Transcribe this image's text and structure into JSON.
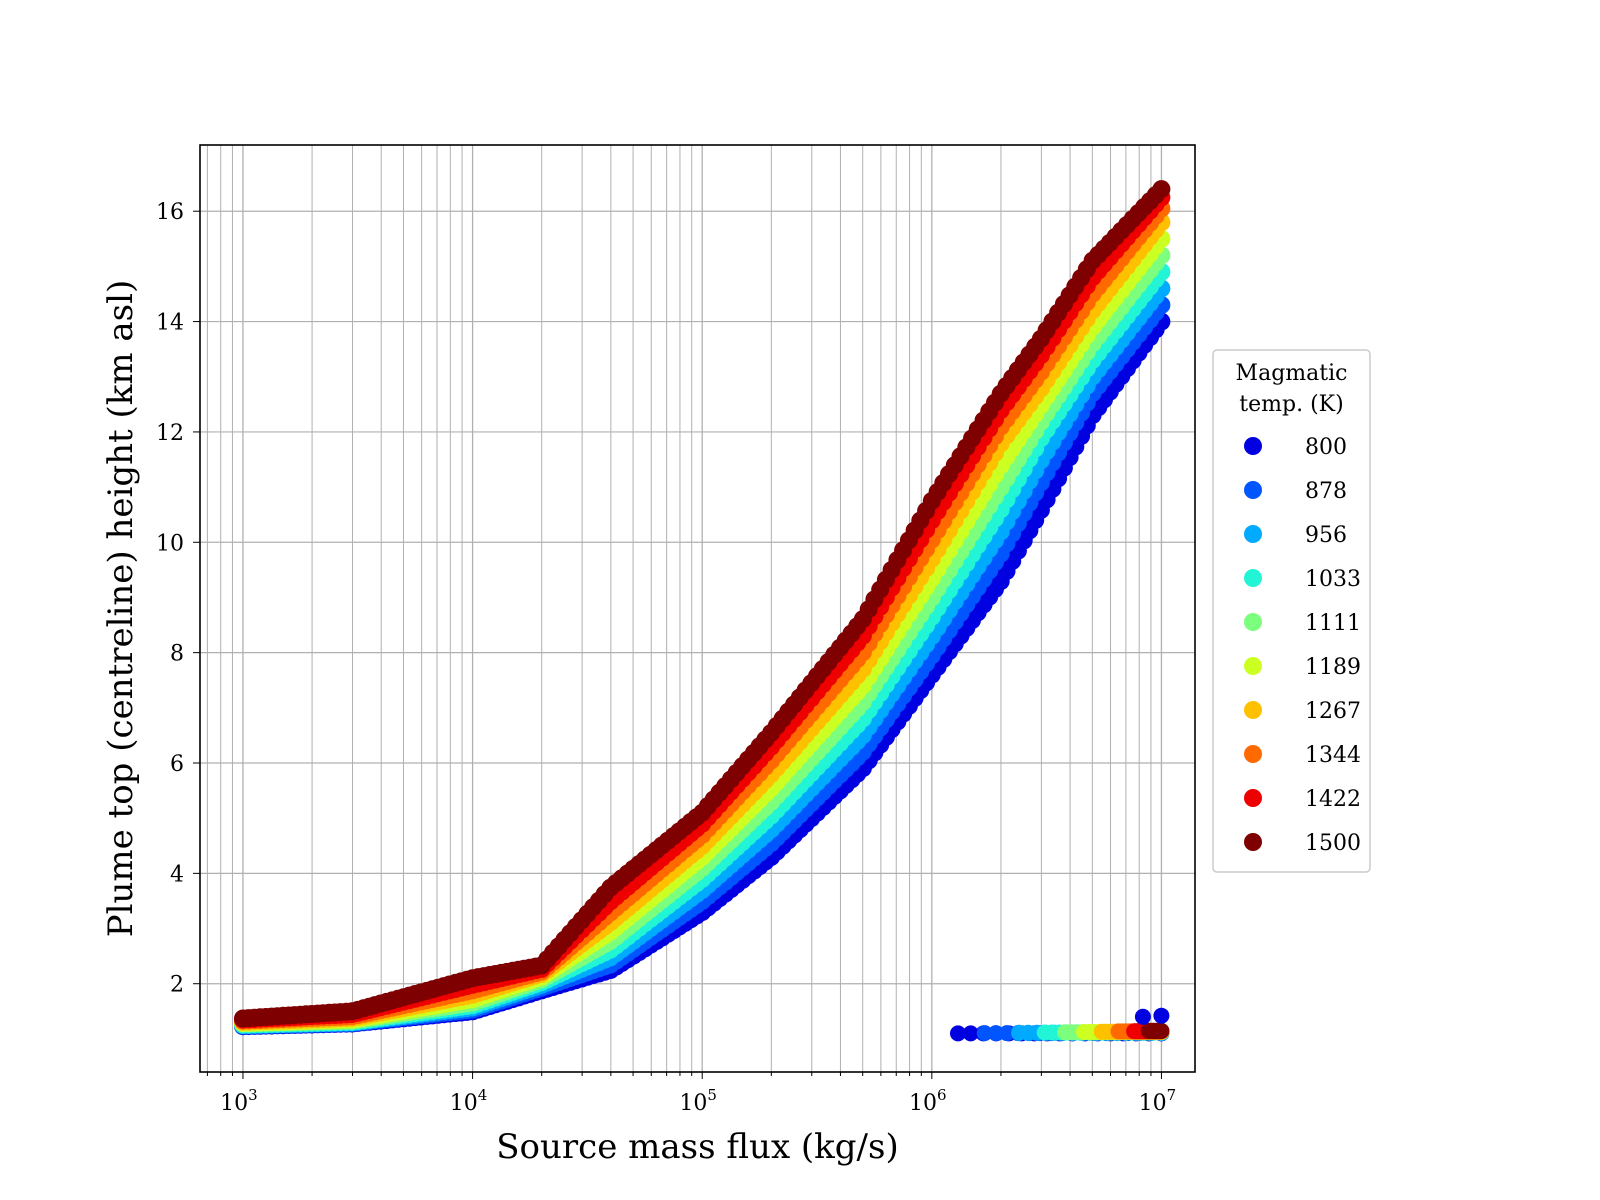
{
  "chart_data": {
    "type": "scatter",
    "title": "",
    "xlabel": "Source mass flux (kg/s)",
    "ylabel": "Plume top (centreline) height (km asl)",
    "xscale": "log",
    "xlim": [
      650,
      14000000
    ],
    "ylim": [
      0.4,
      17.2
    ],
    "x_ticks": [
      {
        "base": "10",
        "exp": "3",
        "value": 1000
      },
      {
        "base": "10",
        "exp": "4",
        "value": 10000
      },
      {
        "base": "10",
        "exp": "5",
        "value": 100000
      },
      {
        "base": "10",
        "exp": "6",
        "value": 1000000
      },
      {
        "base": "10",
        "exp": "7",
        "value": 10000000
      }
    ],
    "y_ticks": [
      "2",
      "4",
      "6",
      "8",
      "10",
      "12",
      "14",
      "16"
    ],
    "grid": true,
    "legend": {
      "title_line1": "Magmatic",
      "title_line2": "temp. (K)",
      "placement": "outside-right"
    },
    "colors": [
      "#0000e0",
      "#0055ff",
      "#00aaff",
      "#22f5d5",
      "#7cff7c",
      "#ccff22",
      "#ffc000",
      "#ff6a00",
      "#ee0000",
      "#7f0000"
    ],
    "x_anchor": [
      1000,
      3000,
      10000,
      20000,
      40000,
      100000,
      200000,
      500000,
      1000000,
      2000000,
      3000000,
      5000000,
      10000000
    ],
    "series": [
      {
        "name": "800",
        "y": [
          1.23,
          1.28,
          1.5,
          1.88,
          2.25,
          3.3,
          4.3,
          5.9,
          7.6,
          9.3,
          10.6,
          12.3,
          14.0
        ]
      },
      {
        "name": "878",
        "y": [
          1.24,
          1.29,
          1.53,
          1.93,
          2.35,
          3.5,
          4.55,
          6.2,
          7.95,
          9.8,
          11.1,
          12.7,
          14.3
        ]
      },
      {
        "name": "956",
        "y": [
          1.25,
          1.3,
          1.57,
          1.98,
          2.48,
          3.7,
          4.8,
          6.5,
          8.3,
          10.2,
          11.5,
          13.0,
          14.6
        ]
      },
      {
        "name": "1033",
        "y": [
          1.26,
          1.31,
          1.61,
          2.03,
          2.62,
          3.9,
          5.05,
          6.8,
          8.65,
          10.6,
          11.9,
          13.3,
          14.9
        ]
      },
      {
        "name": "1111",
        "y": [
          1.28,
          1.33,
          1.66,
          2.08,
          2.78,
          4.1,
          5.3,
          7.1,
          9.0,
          11.0,
          12.2,
          13.6,
          15.2
        ]
      },
      {
        "name": "1189",
        "y": [
          1.29,
          1.35,
          1.72,
          2.13,
          2.95,
          4.3,
          5.55,
          7.4,
          9.35,
          11.4,
          12.5,
          13.9,
          15.5
        ]
      },
      {
        "name": "1267",
        "y": [
          1.31,
          1.38,
          1.8,
          2.18,
          3.12,
          4.5,
          5.8,
          7.7,
          9.7,
          11.8,
          12.8,
          14.2,
          15.8
        ]
      },
      {
        "name": "1344",
        "y": [
          1.33,
          1.41,
          1.88,
          2.22,
          3.3,
          4.7,
          6.05,
          8.0,
          10.05,
          12.1,
          13.1,
          14.5,
          16.05
        ]
      },
      {
        "name": "1422",
        "y": [
          1.35,
          1.45,
          1.98,
          2.27,
          3.5,
          4.9,
          6.3,
          8.3,
          10.4,
          12.4,
          13.4,
          14.8,
          16.25
        ]
      },
      {
        "name": "1500",
        "y": [
          1.37,
          1.5,
          2.1,
          2.33,
          3.75,
          5.1,
          6.55,
          8.6,
          10.75,
          12.7,
          13.7,
          15.1,
          16.4
        ]
      }
    ],
    "low_points": {
      "y": 1.1,
      "x_start": [
        1300000,
        1700000,
        2400000,
        3100000,
        3800000,
        4600000,
        5500000,
        6500000,
        7600000,
        8800000
      ],
      "extra": [
        {
          "x": 8300000,
          "y": 1.4,
          "color": "#0000e0"
        },
        {
          "x": 10000000,
          "y": 1.42,
          "color": "#0000e0"
        }
      ]
    }
  }
}
